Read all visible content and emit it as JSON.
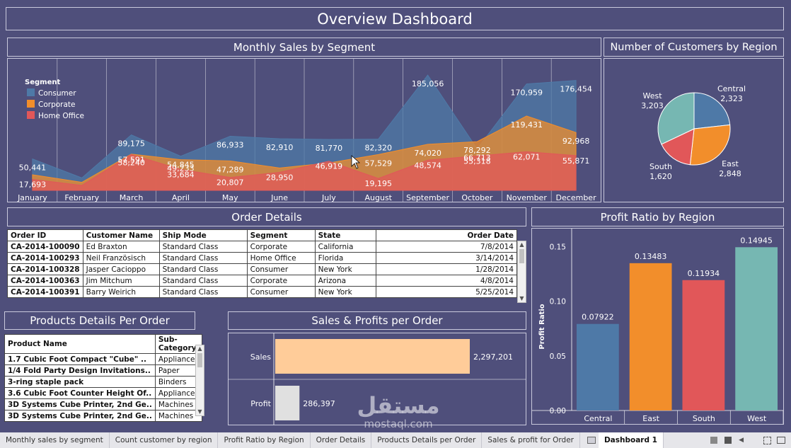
{
  "dashboard_title": "Overview Dashboard",
  "panels": {
    "monthly_sales": "Monthly Sales by Segment",
    "customers_region": "Number of Customers by Region",
    "order_details": "Order Details",
    "profit_ratio": "Profit Ratio by Region",
    "products_details": "Products Details Per Order",
    "sales_profits": "Sales & Profits per Order"
  },
  "order_table": {
    "headers": [
      "Order ID",
      "Customer Name",
      "Ship Mode",
      "Segment",
      "State",
      "Order Date"
    ],
    "rows": [
      [
        "CA-2014-100090",
        "Ed Braxton",
        "Standard Class",
        "Corporate",
        "California",
        "7/8/2014"
      ],
      [
        "CA-2014-100293",
        "Neil Französisch",
        "Standard Class",
        "Home Office",
        "Florida",
        "3/14/2014"
      ],
      [
        "CA-2014-100328",
        "Jasper Cacioppo",
        "Standard Class",
        "Consumer",
        "New York",
        "1/28/2014"
      ],
      [
        "CA-2014-100363",
        "Jim Mitchum",
        "Standard Class",
        "Corporate",
        "Arizona",
        "4/8/2014"
      ],
      [
        "CA-2014-100391",
        "Barry Weirich",
        "Standard Class",
        "Consumer",
        "New York",
        "5/25/2014"
      ]
    ]
  },
  "products_table": {
    "headers": [
      "Product Name",
      "Sub-Category"
    ],
    "rows": [
      [
        "1.7 Cubic Foot Compact \"Cube\" ..",
        "Appliances"
      ],
      [
        "1/4 Fold Party Design Invitations..",
        "Paper"
      ],
      [
        "3-ring staple pack",
        "Binders"
      ],
      [
        "3.6 Cubic Foot Counter Height Of..",
        "Appliances"
      ],
      [
        "3D Systems Cube Printer, 2nd Ge..",
        "Machines"
      ],
      [
        "3D Systems Cube Printer, 2nd Ge..",
        "Machines"
      ]
    ]
  },
  "tabs": [
    "Monthly sales by segment",
    "Count customer by region",
    "Profit Ratio by Region",
    "Order Details",
    "Products Details per Order",
    "Sales & profit for Order",
    "Dashboard 1"
  ],
  "watermark": {
    "arabic": "مستقل",
    "latin": "mostaql.com"
  },
  "colors": {
    "background": "#4f4f7b",
    "consumer": "#4e79a7",
    "corporate": "#f28e2b",
    "home_office": "#e15759",
    "teal": "#76b7b2",
    "sales_bar": "#ffcc99",
    "profit_bar": "#e0e0e0"
  },
  "chart_data": [
    {
      "type": "area",
      "title": "Monthly Sales by Segment",
      "legend_title": "Segment",
      "legend_position": "top-left",
      "categories": [
        "January",
        "February",
        "March",
        "April",
        "May",
        "June",
        "July",
        "August",
        "September",
        "October",
        "November",
        "December"
      ],
      "series": [
        {
          "name": "Consumer",
          "color": "#4e79a7",
          "values": [
            50441,
            20000,
            89175,
            54845,
            86933,
            82910,
            81770,
            82320,
            185056,
            66713,
            170959,
            176454
          ]
        },
        {
          "name": "Corporate",
          "color": "#f28e2b",
          "values": [
            25000,
            13000,
            58240,
            49233,
            47289,
            36000,
            44000,
            57529,
            74020,
            78292,
            119431,
            92968
          ]
        },
        {
          "name": "Home Office",
          "color": "#e15759",
          "values": [
            17693,
            8000,
            57591,
            33684,
            20807,
            28950,
            46919,
            19195,
            48574,
            55318,
            62071,
            55871
          ]
        }
      ],
      "labels_shown": {
        "Consumer": [
          "50,441",
          null,
          "89,175",
          "54,845",
          "86,933",
          "82,910",
          "81,770",
          "82,320",
          "185,056",
          "66,713",
          "170,959",
          "176,454"
        ],
        "Corporate": [
          null,
          null,
          "58,240",
          "49,233",
          "47,289",
          null,
          null,
          "57,529",
          "74,020",
          "78,292",
          "119,431",
          "92,968"
        ],
        "Home Office": [
          "17,693",
          null,
          "57,591",
          "33,684",
          "20,807",
          "28,950",
          "46,919",
          "19,195",
          "48,574",
          "55,318",
          "62,071",
          "55,871"
        ]
      },
      "ylim": [
        0,
        200000
      ]
    },
    {
      "type": "pie",
      "title": "Number of Customers by Region",
      "slices": [
        {
          "name": "Central",
          "value": 2323,
          "label": "2,323",
          "color": "#4e79a7"
        },
        {
          "name": "East",
          "value": 2848,
          "label": "2,848",
          "color": "#f28e2b"
        },
        {
          "name": "South",
          "value": 1620,
          "label": "1,620",
          "color": "#e15759"
        },
        {
          "name": "West",
          "value": 3203,
          "label": "3,203",
          "color": "#76b7b2"
        }
      ]
    },
    {
      "type": "bar",
      "title": "Profit Ratio by Region",
      "ylabel": "Profit Ratio",
      "categories": [
        "Central",
        "East",
        "South",
        "West"
      ],
      "values": [
        0.07922,
        0.13483,
        0.11934,
        0.14945
      ],
      "value_labels": [
        "0.07922",
        "0.13483",
        "0.11934",
        "0.14945"
      ],
      "colors": [
        "#4e79a7",
        "#f28e2b",
        "#e15759",
        "#76b7b2"
      ],
      "yticks": [
        "0.00",
        "0.05",
        "0.10",
        "0.15"
      ],
      "ylim": [
        0,
        0.16
      ]
    },
    {
      "type": "bar",
      "orientation": "horizontal",
      "title": "Sales & Profits per Order",
      "categories": [
        "Sales",
        "Profit"
      ],
      "values": [
        2297201,
        286397
      ],
      "value_labels": [
        "2,297,201",
        "286,397"
      ],
      "colors": [
        "#ffcc99",
        "#e0e0e0"
      ]
    }
  ]
}
